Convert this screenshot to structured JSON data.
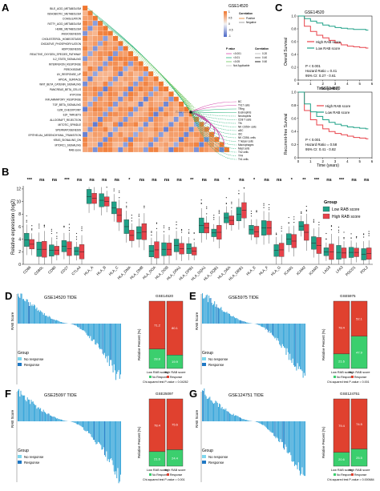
{
  "panel_letters": {
    "a": "A",
    "b": "B",
    "c": "C",
    "d": "D",
    "e": "E",
    "f": "F",
    "g": "G"
  },
  "colors": {
    "low": "#1fa187",
    "high": "#e8424a",
    "heat_pos": "#f0772f",
    "heat_neg": "#4a67c8",
    "bar": "#2a9fd6",
    "noresp": "#7fd7ee",
    "resp": "#1f78c4",
    "stack_red": "#e0412f",
    "stack_green": "#3bcf6e"
  },
  "panelA": {
    "dataset": "GSE14520",
    "pathways": [
      "BILE_ACID_METABOLISM",
      "XENOBIOTIC_METABOLISM",
      "COAGULATION",
      "FATTY_ACID_METABOLISM",
      "HEME_METABOLISM",
      "ANGIOGENESIS",
      "CHOLESTEROL_HOMEOSTASIS",
      "OXIDATIVE_PHOSPHORYLATION",
      "ADIPOGENESIS",
      "REACTIVE_OXYGEN_SPECIES_PATHWAY",
      "IL2_STAT5_SIGNALING",
      "INTERFERON_RESPONSE",
      "PEROXISOME",
      "UV_RESPONSE_UP",
      "APICAL_SURFACE",
      "WNT_BETA_CATENIN_SIGNALING",
      "PANCREAS_BETA_CELLS",
      "HYPOXIA",
      "INFLAMMATORY_RESPONSE",
      "TGF_BETA_SIGNALING",
      "G2M_CHECKPOINT",
      "E2F_TARGETS",
      "ALLOGRAFT_REJECTION",
      "MITOTIC_SPINDLE",
      "SPERMATOGENESIS",
      "EPITHELIAL_MESENCHYMAL_TRANSITION",
      "KRAS_SIGNALING_DN",
      "MTORC1_SIGNALING",
      "RAB score"
    ],
    "cells": [
      "BC",
      "Th17 cells",
      "TReg",
      "Eosinophils",
      "Neutrophils",
      "CD8 T cells",
      "Tfh",
      "NK CD56+ cells",
      "aDC",
      "iDC",
      "NK CD56- cells",
      "T helper cells",
      "Macrophages",
      "Mast cells",
      "Th2 cells",
      "TFH",
      "Th1 cells"
    ],
    "center_label": "RAB score",
    "legend_corr_title": "Correlation",
    "legend_corr_items": [
      "Positive",
      "Negative"
    ],
    "legend_p_title": "P value",
    "legend_p_items": [
      "<0.001",
      "<0.01",
      "<0.05",
      "Not Applicable"
    ],
    "legend_r_title": "Correlation",
    "legend_r_items": [
      "0.20",
      "0.40",
      "0.60"
    ],
    "colorbar_ticks": [
      "1",
      "0.5",
      "0",
      "-0.5",
      "-1"
    ]
  },
  "panelC": {
    "dataset": "GSE14520",
    "os_ylabel": "Overall Survival",
    "rfs_ylabel": "Recurrent-free Survival",
    "xlabel": "Time (years)",
    "xticks": [
      "0",
      "1",
      "2",
      "3",
      "4",
      "5",
      "6"
    ],
    "yticks": [
      "0",
      "0.2",
      "0.4",
      "0.6",
      "0.8",
      "1.0"
    ],
    "os_legend": [
      "High RAB score",
      "Low RAB score"
    ],
    "os_stats": [
      "P < 0.001",
      "Hazard Ratio = 0.41",
      "95% CI: 0.27 - 0.61"
    ],
    "rfs_legend": [
      "High RAB score",
      "Low RAB score"
    ],
    "rfs_stats": [
      "P < 0.001",
      "Hazard Ratio = 0.58",
      "95% CI: 0.41 - 0.82"
    ]
  },
  "panelB": {
    "ylabel": "Relative expression (log2)",
    "yticks": [
      "0",
      "2",
      "4",
      "6",
      "8",
      "10",
      "12"
    ],
    "genes": [
      "CD86",
      "CD80L",
      "CD80",
      "CD27",
      "CTLA4",
      "HLA_A",
      "HLA_B",
      "HLA_C",
      "HLA_DMA",
      "HLA_DMB",
      "HLA_DOA",
      "HLA_DOB",
      "HLA_DPA1",
      "HLA_DPB1",
      "HLA_DQA1",
      "HLA_DQB1",
      "HLA_DRA",
      "HLA_DRB1",
      "HLA_E",
      "HLA_F",
      "HLA_G",
      "ICAM1",
      "ICAM2",
      "ICAM3",
      "LAG3",
      "LFA3",
      "PDCD1",
      "PDL2"
    ],
    "sig": [
      "***",
      "ns",
      "ns",
      "***",
      "ns",
      "ns",
      "ns",
      "ns",
      "*",
      "ns",
      "ns",
      "ns",
      "ns",
      "**",
      "ns",
      "ns",
      "*",
      "ns",
      "*",
      "ns",
      "ns",
      "*",
      "**",
      "***",
      "ns",
      "***",
      "ns",
      "ns"
    ],
    "legend_title": "Group",
    "legend_items": [
      "Low RAB score",
      "High RAB score"
    ]
  },
  "tide_panels": [
    {
      "title": "GSE14520 TIDE",
      "stack_title": "GSE14520",
      "low_nr": "71.2",
      "low_r": "28.8",
      "high_nr": "80.1",
      "high_r": "19.9",
      "chi": "Chi-squared test P-value = 0.04262",
      "ylabel": "RAB Score",
      "stack_ylabel": "Relative Percent (%)",
      "cats": [
        "Low RAB score",
        "High RAB score"
      ],
      "group_title": "Group",
      "group_items": [
        "No response",
        "Response"
      ],
      "leg_items": [
        "No Response",
        "Response"
      ]
    },
    {
      "title": "GSE5975 TIDE",
      "stack_title": "GSE5975",
      "low_nr": "78.4",
      "low_r": "21.6",
      "high_nr": "52.1",
      "high_r": "47.9",
      "chi": "Chi-squared test P-value = 0.001",
      "ylabel": "RAB Score",
      "stack_ylabel": "Relative Percent (%)",
      "cats": [
        "Low RAB score",
        "High RAB score"
      ],
      "group_title": "Group",
      "group_items": [
        "No response",
        "Response"
      ],
      "leg_items": [
        "No Response",
        "Response"
      ]
    },
    {
      "title": "GSE25097 TIDE",
      "stack_title": "GSE25097",
      "low_nr": "78.4",
      "low_r": "21.6",
      "high_nr": "75.6",
      "high_r": "24.4",
      "chi": "Chi-squared test P-value = 0.001",
      "ylabel": "RAB Score",
      "stack_ylabel": "Relative Percent (%)",
      "cats": [
        "Low RAB score",
        "High RAB score"
      ],
      "group_title": "Group",
      "group_items": [
        "No response",
        "Response"
      ],
      "leg_items": [
        "No Response",
        "Response"
      ]
    },
    {
      "title": "GSE124751 TIDE",
      "stack_title": "GSE124751",
      "low_nr": "79.4",
      "low_r": "20.6",
      "high_nr": "74.5",
      "high_r": "25.5",
      "chi": "Chi-squared test P-value = 0.000684",
      "ylabel": "RAB Score",
      "stack_ylabel": "Relative Percent (%)",
      "cats": [
        "Low RAB score",
        "High RAB score"
      ],
      "group_title": "Group",
      "group_items": [
        "No response",
        "Response"
      ],
      "leg_items": [
        "No Response",
        "Response"
      ]
    }
  ],
  "chart_data": [
    {
      "type": "heatmap",
      "title": "GSE14520",
      "rows": [
        "BILE_ACID_METABOLISM",
        "XENOBIOTIC_METABOLISM",
        "COAGULATION",
        "FATTY_ACID_METABOLISM",
        "HEME_METABOLISM",
        "ANGIOGENESIS",
        "CHOLESTEROL_HOMEOSTASIS",
        "OXIDATIVE_PHOSPHORYLATION",
        "ADIPOGENESIS",
        "REACTIVE_OXYGEN_SPECIES_PATHWAY",
        "IL2_STAT5_SIGNALING",
        "INTERFERON_RESPONSE",
        "PEROXISOME",
        "UV_RESPONSE_UP",
        "APICAL_SURFACE",
        "WNT_BETA_CATENIN_SIGNALING",
        "PANCREAS_BETA_CELLS",
        "HYPOXIA",
        "INFLAMMATORY_RESPONSE",
        "TGF_BETA_SIGNALING",
        "G2M_CHECKPOINT",
        "E2F_TARGETS",
        "ALLOGRAFT_REJECTION",
        "MITOTIC_SPINDLE",
        "SPERMATOGENESIS",
        "EPITHELIAL_MESENCHYMAL_TRANSITION",
        "KRAS_SIGNALING_DN",
        "MTORC1_SIGNALING",
        "RAB score"
      ],
      "colorbar": [
        -1,
        1
      ]
    },
    {
      "type": "line",
      "title": "GSE14520",
      "subtype": "kaplan-meier",
      "ylabel": "Overall Survival",
      "xlabel": "Time (years)",
      "xlim": [
        0,
        6
      ],
      "ylim": [
        0,
        1
      ],
      "series": [
        {
          "name": "High RAB score",
          "x": [
            0,
            0.5,
            1,
            1.5,
            2,
            2.5,
            3,
            3.5,
            4,
            4.5,
            5,
            5.5
          ],
          "y": [
            1,
            0.84,
            0.76,
            0.7,
            0.66,
            0.62,
            0.58,
            0.55,
            0.53,
            0.52,
            0.51,
            0.5
          ]
        },
        {
          "name": "Low RAB score",
          "x": [
            0,
            0.5,
            1,
            1.5,
            2,
            2.5,
            3,
            3.5,
            4,
            4.5,
            5,
            5.5
          ],
          "y": [
            1,
            0.96,
            0.92,
            0.89,
            0.86,
            0.84,
            0.82,
            0.81,
            0.8,
            0.79,
            0.79,
            0.78
          ]
        }
      ]
    },
    {
      "type": "line",
      "title": "GSE14520",
      "subtype": "kaplan-meier",
      "ylabel": "Recurrent-free Survival",
      "xlabel": "Time (years)",
      "xlim": [
        0,
        6
      ],
      "ylim": [
        0,
        1
      ],
      "series": [
        {
          "name": "High RAB score",
          "x": [
            0,
            0.5,
            1,
            1.5,
            2,
            2.5,
            3,
            3.5,
            4,
            4.5,
            5,
            5.5
          ],
          "y": [
            1,
            0.72,
            0.58,
            0.5,
            0.44,
            0.4,
            0.37,
            0.35,
            0.33,
            0.31,
            0.3,
            0.29
          ]
        },
        {
          "name": "Low RAB score",
          "x": [
            0,
            0.5,
            1,
            1.5,
            2,
            2.5,
            3,
            3.5,
            4,
            4.5,
            5,
            5.5
          ],
          "y": [
            1,
            0.82,
            0.7,
            0.63,
            0.58,
            0.54,
            0.51,
            0.49,
            0.47,
            0.46,
            0.45,
            0.44
          ]
        }
      ]
    },
    {
      "type": "box",
      "ylabel": "Relative expression (log2)",
      "ylim": [
        0,
        12
      ],
      "categories": [
        "CD86",
        "CD80L",
        "CD80",
        "CD27",
        "CTLA4",
        "HLA_A",
        "HLA_B",
        "HLA_C",
        "HLA_DMA",
        "HLA_DMB",
        "HLA_DOA",
        "HLA_DOB",
        "HLA_DPA1",
        "HLA_DPB1",
        "HLA_DQA1",
        "HLA_DQB1",
        "HLA_DRA",
        "HLA_DRB1",
        "HLA_E",
        "HLA_F",
        "HLA_G",
        "ICAM1",
        "ICAM2",
        "ICAM3",
        "LAG3",
        "LFA3",
        "PDCD1",
        "PDL2"
      ],
      "series": [
        {
          "name": "Low RAB score",
          "medians": [
            3.9,
            2.4,
            2.2,
            2.9,
            2.1,
            10.8,
            10.2,
            9.0,
            6.0,
            5.0,
            2.1,
            2.4,
            3.0,
            2.5,
            6.2,
            5.0,
            7.4,
            8.0,
            5.5,
            5.8,
            2.2,
            4.0,
            6.1,
            3.4,
            2.0,
            1.9,
            1.9,
            1.6
          ]
        },
        {
          "name": "High RAB score",
          "medians": [
            3.2,
            2.4,
            2.2,
            2.5,
            2.0,
            10.5,
            10.0,
            7.8,
            4.6,
            5.2,
            2.3,
            2.4,
            2.5,
            2.1,
            5.8,
            5.1,
            7.0,
            8.6,
            5.2,
            5.8,
            2.3,
            3.7,
            5.1,
            3.0,
            2.0,
            1.8,
            1.9,
            1.7
          ]
        }
      ]
    },
    {
      "type": "bar",
      "title": "GSE14520",
      "categories": [
        "Low RAB score",
        "High RAB score"
      ],
      "series": [
        {
          "name": "No Response",
          "values": [
            71.2,
            80.1
          ]
        },
        {
          "name": "Response",
          "values": [
            28.8,
            19.9
          ]
        }
      ],
      "ylabel": "Relative Percent (%)",
      "ylim": [
        0,
        100
      ]
    },
    {
      "type": "bar",
      "title": "GSE5975",
      "categories": [
        "Low RAB score",
        "High RAB score"
      ],
      "series": [
        {
          "name": "No Response",
          "values": [
            78.4,
            52.1
          ]
        },
        {
          "name": "Response",
          "values": [
            21.6,
            47.9
          ]
        }
      ],
      "ylabel": "Relative Percent (%)",
      "ylim": [
        0,
        100
      ]
    },
    {
      "type": "bar",
      "title": "GSE25097",
      "categories": [
        "Low RAB score",
        "High RAB score"
      ],
      "series": [
        {
          "name": "No Response",
          "values": [
            78.4,
            75.6
          ]
        },
        {
          "name": "Response",
          "values": [
            21.6,
            24.4
          ]
        }
      ],
      "ylabel": "Relative Percent (%)",
      "ylim": [
        0,
        100
      ]
    },
    {
      "type": "bar",
      "title": "GSE124751",
      "categories": [
        "Low RAB score",
        "High RAB score"
      ],
      "series": [
        {
          "name": "No Response",
          "values": [
            79.4,
            74.5
          ]
        },
        {
          "name": "Response",
          "values": [
            20.6,
            25.5
          ]
        }
      ],
      "ylabel": "Relative Percent (%)",
      "ylim": [
        0,
        100
      ]
    }
  ]
}
